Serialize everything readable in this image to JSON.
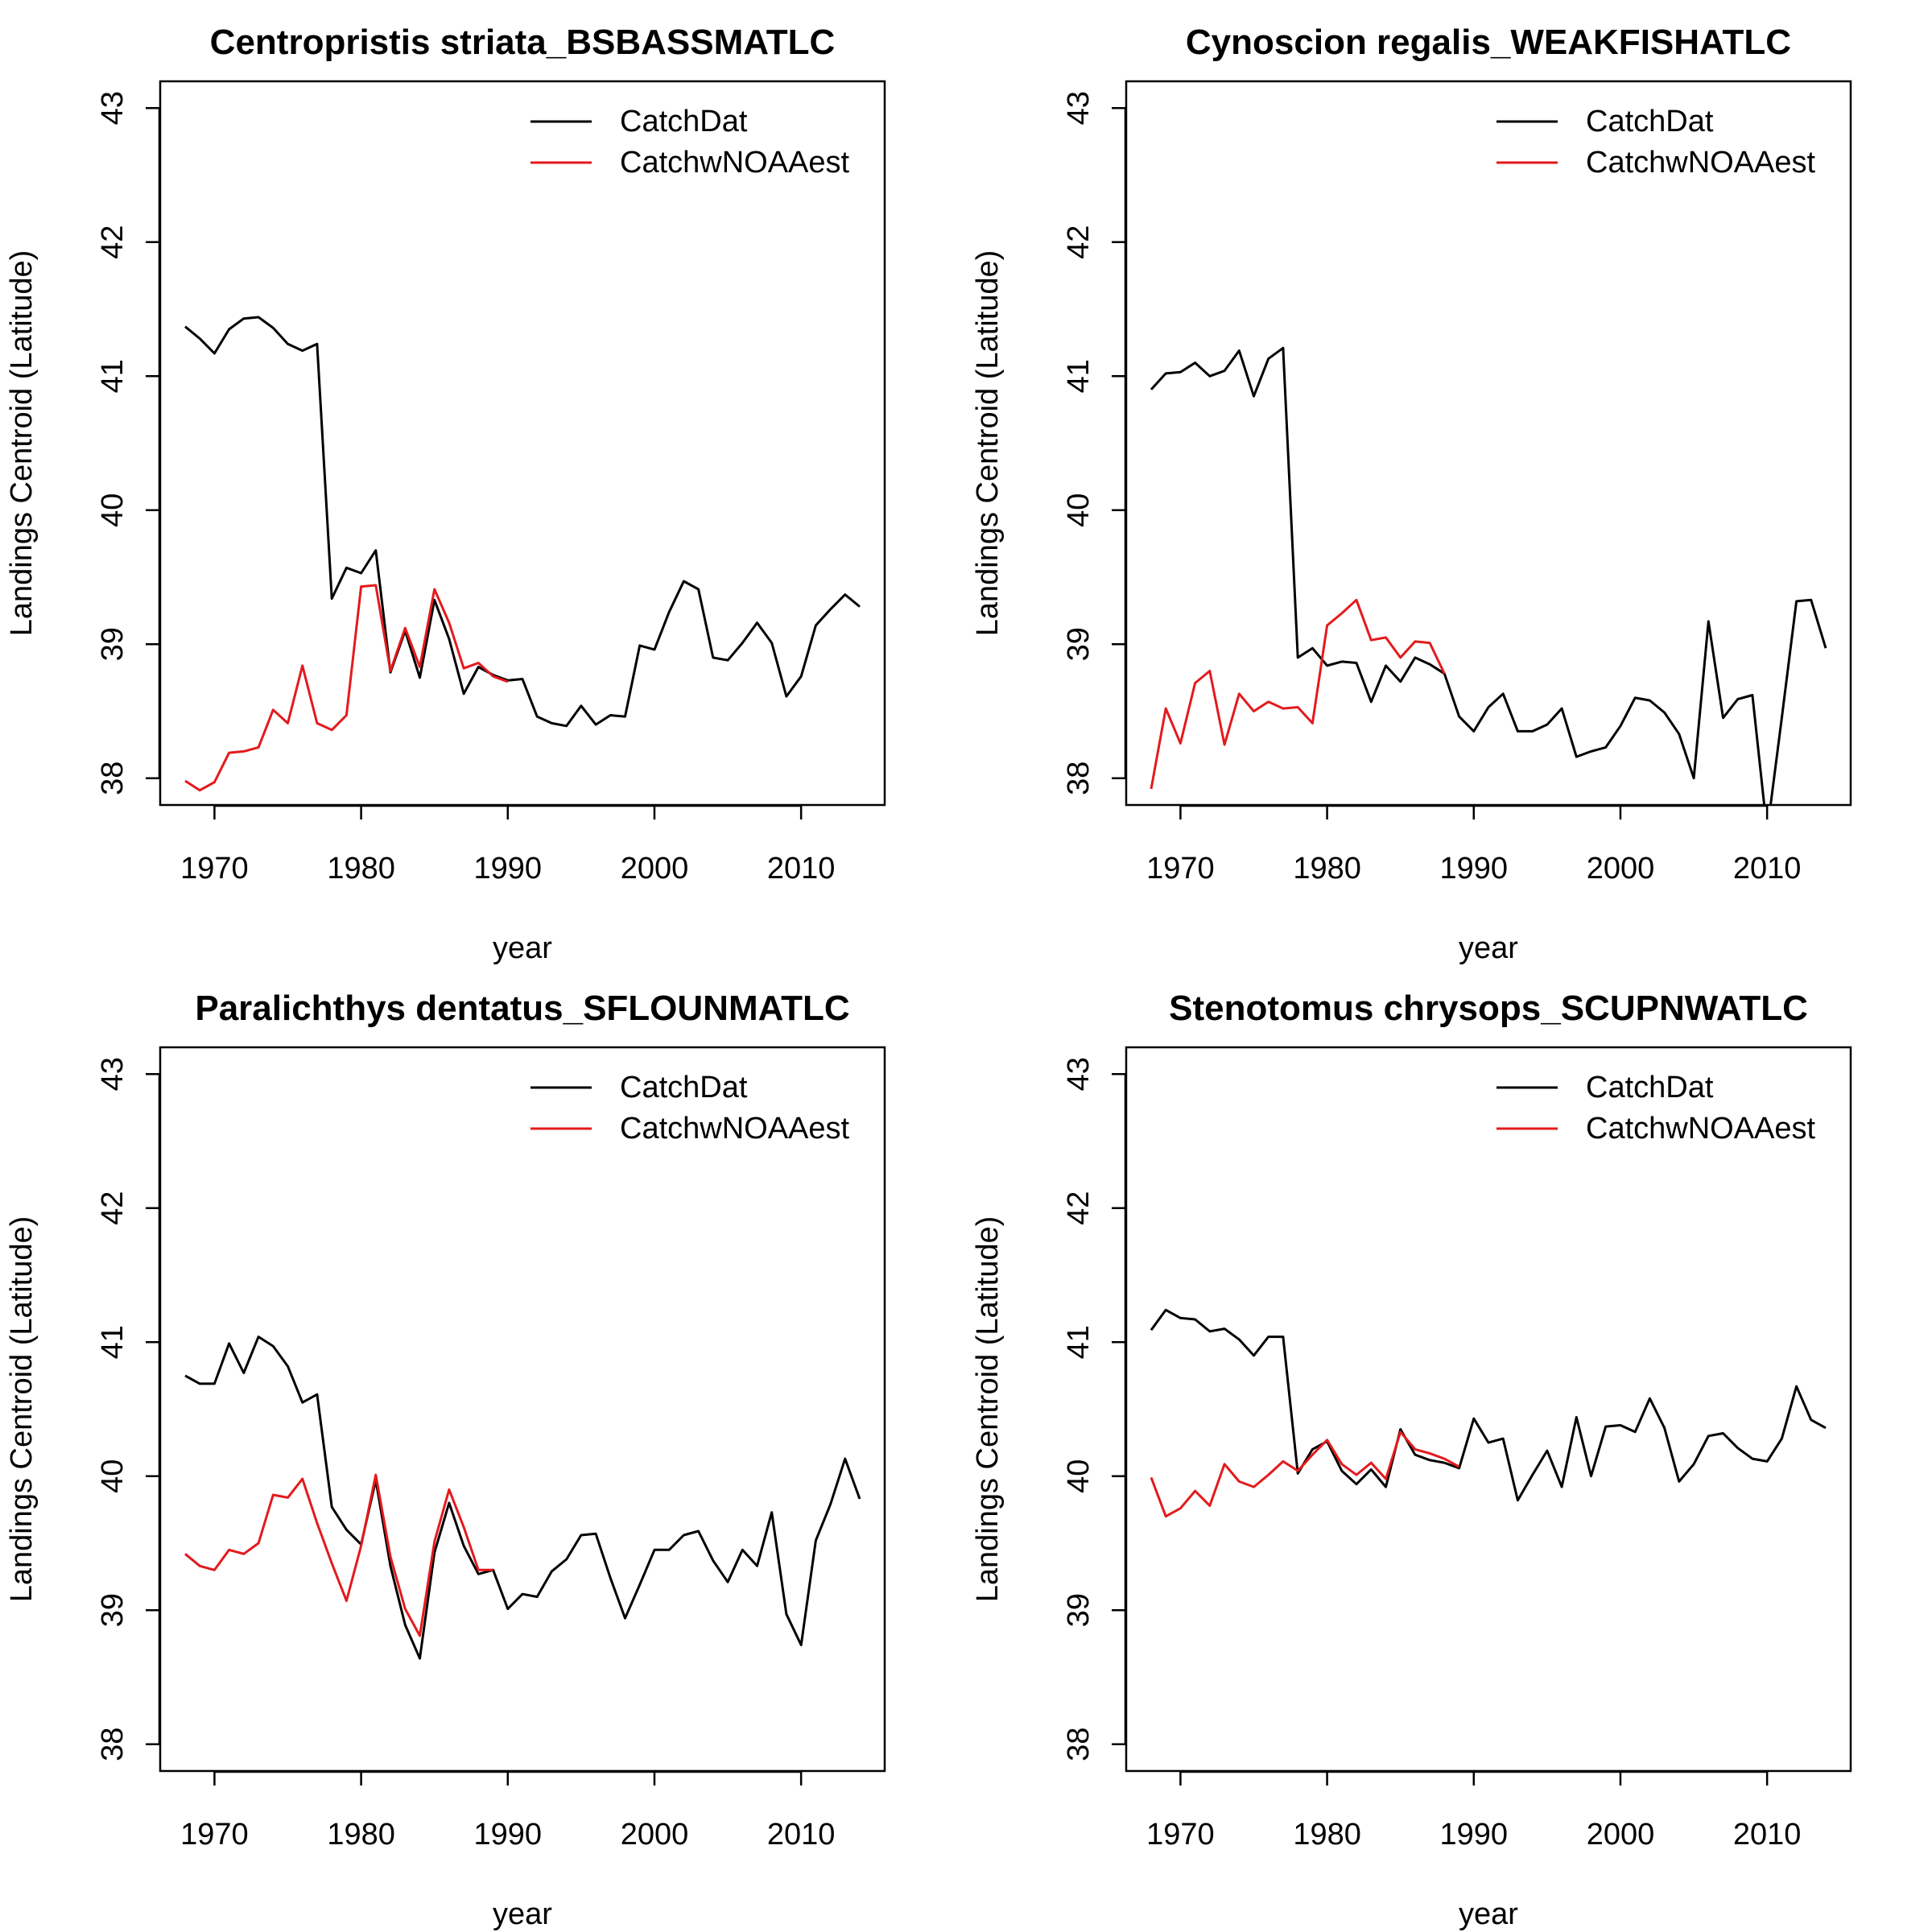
{
  "figure": {
    "legend_labels": [
      "CatchDat",
      "CatchwNOAAest"
    ],
    "colors": {
      "CatchDat": "#000000",
      "CatchwNOAAest": "#e31a1c"
    }
  },
  "chart_data": [
    {
      "type": "line",
      "title": "Centropristis striata_BSBASSMATLC",
      "xlabel": "year",
      "ylabel": "Landings Centroid (Latitude)",
      "xlim": [
        1966.3,
        2015.7
      ],
      "ylim": [
        37.8,
        43.2
      ],
      "xticks": [
        1970,
        1980,
        1990,
        2000,
        2010
      ],
      "yticks": [
        38,
        39,
        40,
        41,
        42,
        43
      ],
      "legend_position": "top-right",
      "series": [
        {
          "name": "CatchDat",
          "color": "#000000",
          "x": [
            1968,
            1969,
            1970,
            1971,
            1972,
            1973,
            1974,
            1975,
            1976,
            1977,
            1978,
            1979,
            1980,
            1981,
            1982,
            1983,
            1984,
            1985,
            1986,
            1987,
            1988,
            1989,
            1990,
            1991,
            1992,
            1993,
            1994,
            1995,
            1996,
            1997,
            1998,
            1999,
            2000,
            2001,
            2002,
            2003,
            2004,
            2005,
            2006,
            2007,
            2008,
            2009,
            2010,
            2011,
            2012,
            2013,
            2014
          ],
          "y": [
            41.37,
            41.28,
            41.17,
            41.35,
            41.43,
            41.44,
            41.36,
            41.24,
            41.19,
            41.24,
            39.34,
            39.57,
            39.53,
            39.7,
            38.79,
            39.1,
            38.75,
            39.33,
            39.04,
            38.63,
            38.83,
            38.77,
            38.73,
            38.74,
            38.46,
            38.41,
            38.39,
            38.54,
            38.4,
            38.47,
            38.46,
            38.99,
            38.96,
            39.24,
            39.47,
            39.41,
            38.9,
            38.88,
            39.01,
            39.16,
            39.01,
            38.61,
            38.76,
            39.14,
            39.26,
            39.37,
            39.28
          ]
        },
        {
          "name": "CatchwNOAAest",
          "color": "#e31a1c",
          "x": [
            1968,
            1969,
            1970,
            1971,
            1972,
            1973,
            1974,
            1975,
            1976,
            1977,
            1978,
            1979,
            1980,
            1981,
            1982,
            1983,
            1984,
            1985,
            1986,
            1987,
            1988,
            1989,
            1990
          ],
          "y": [
            37.98,
            37.91,
            37.97,
            38.19,
            38.2,
            38.23,
            38.51,
            38.41,
            38.84,
            38.41,
            38.36,
            38.47,
            39.43,
            39.44,
            38.8,
            39.12,
            38.83,
            39.41,
            39.16,
            38.82,
            38.86,
            38.76,
            38.72
          ]
        }
      ]
    },
    {
      "type": "line",
      "title": "Cynoscion regalis_WEAKFISHATLC",
      "xlabel": "year",
      "ylabel": "Landings Centroid (Latitude)",
      "xlim": [
        1966.3,
        2015.7
      ],
      "ylim": [
        37.8,
        43.2
      ],
      "xticks": [
        1970,
        1980,
        1990,
        2000,
        2010
      ],
      "yticks": [
        38,
        39,
        40,
        41,
        42,
        43
      ],
      "legend_position": "top-right",
      "series": [
        {
          "name": "CatchDat",
          "color": "#000000",
          "x": [
            1968,
            1969,
            1970,
            1971,
            1972,
            1973,
            1974,
            1975,
            1976,
            1977,
            1978,
            1979,
            1980,
            1981,
            1982,
            1983,
            1984,
            1985,
            1986,
            1987,
            1988,
            1989,
            1990,
            1991,
            1992,
            1993,
            1994,
            1995,
            1996,
            1997,
            1998,
            1999,
            2000,
            2001,
            2002,
            2003,
            2004,
            2005,
            2006,
            2007,
            2008,
            2009,
            2010,
            2011,
            2012,
            2013,
            2014
          ],
          "y": [
            40.9,
            41.02,
            41.03,
            41.1,
            41.0,
            41.04,
            41.19,
            40.85,
            41.13,
            41.21,
            38.9,
            38.97,
            38.84,
            38.87,
            38.86,
            38.57,
            38.84,
            38.72,
            38.9,
            38.85,
            38.78,
            38.46,
            38.35,
            38.53,
            38.63,
            38.35,
            38.35,
            38.4,
            38.52,
            38.16,
            38.2,
            38.23,
            38.39,
            38.6,
            38.58,
            38.49,
            38.33,
            38.0,
            39.17,
            38.45,
            38.59,
            38.62,
            37.6,
            38.45,
            39.32,
            39.33,
            38.97
          ]
        },
        {
          "name": "CatchwNOAAest",
          "color": "#e31a1c",
          "x": [
            1968,
            1969,
            1970,
            1971,
            1972,
            1973,
            1974,
            1975,
            1976,
            1977,
            1978,
            1979,
            1980,
            1981,
            1982,
            1983,
            1984,
            1985,
            1986,
            1987,
            1988
          ],
          "y": [
            37.92,
            38.52,
            38.26,
            38.71,
            38.8,
            38.25,
            38.63,
            38.5,
            38.57,
            38.52,
            38.53,
            38.41,
            39.14,
            39.23,
            39.33,
            39.03,
            39.05,
            38.9,
            39.02,
            39.01,
            38.78
          ]
        }
      ]
    },
    {
      "type": "line",
      "title": "Paralichthys dentatus_SFLOUNMATLC",
      "xlabel": "year",
      "ylabel": "Landings Centroid (Latitude)",
      "xlim": [
        1966.3,
        2015.7
      ],
      "ylim": [
        37.8,
        43.2
      ],
      "xticks": [
        1970,
        1980,
        1990,
        2000,
        2010
      ],
      "yticks": [
        38,
        39,
        40,
        41,
        42,
        43
      ],
      "legend_position": "top-right",
      "series": [
        {
          "name": "CatchDat",
          "color": "#000000",
          "x": [
            1968,
            1969,
            1970,
            1971,
            1972,
            1973,
            1974,
            1975,
            1976,
            1977,
            1978,
            1979,
            1980,
            1981,
            1982,
            1983,
            1984,
            1985,
            1986,
            1987,
            1988,
            1989,
            1990,
            1991,
            1992,
            1993,
            1994,
            1995,
            1996,
            1997,
            1998,
            1999,
            2000,
            2001,
            2002,
            2003,
            2004,
            2005,
            2006,
            2007,
            2008,
            2009,
            2010,
            2011,
            2012,
            2013,
            2014
          ],
          "y": [
            40.75,
            40.69,
            40.69,
            40.99,
            40.77,
            41.04,
            40.97,
            40.82,
            40.55,
            40.61,
            39.77,
            39.6,
            39.49,
            39.97,
            39.33,
            38.89,
            38.64,
            39.43,
            39.8,
            39.48,
            39.27,
            39.3,
            39.01,
            39.12,
            39.1,
            39.29,
            39.38,
            39.56,
            39.57,
            39.24,
            38.94,
            39.19,
            39.45,
            39.45,
            39.56,
            39.59,
            39.37,
            39.21,
            39.45,
            39.33,
            39.73,
            38.97,
            38.74,
            39.52,
            39.79,
            40.13,
            39.83
          ]
        },
        {
          "name": "CatchwNOAAest",
          "color": "#e31a1c",
          "x": [
            1968,
            1969,
            1970,
            1971,
            1972,
            1973,
            1974,
            1975,
            1976,
            1977,
            1978,
            1979,
            1980,
            1981,
            1982,
            1983,
            1984,
            1985,
            1986,
            1987,
            1988,
            1989
          ],
          "y": [
            39.42,
            39.33,
            39.3,
            39.45,
            39.42,
            39.5,
            39.86,
            39.84,
            39.98,
            39.65,
            39.35,
            39.07,
            39.48,
            40.01,
            39.4,
            39.01,
            38.81,
            39.51,
            39.9,
            39.62,
            39.3,
            39.3
          ]
        }
      ]
    },
    {
      "type": "line",
      "title": "Stenotomus chrysops_SCUPNWATLC",
      "xlabel": "year",
      "ylabel": "Landings Centroid (Latitude)",
      "xlim": [
        1966.3,
        2015.7
      ],
      "ylim": [
        37.8,
        43.2
      ],
      "xticks": [
        1970,
        1980,
        1990,
        2000,
        2010
      ],
      "yticks": [
        38,
        39,
        40,
        41,
        42,
        43
      ],
      "legend_position": "top-right",
      "series": [
        {
          "name": "CatchDat",
          "color": "#000000",
          "x": [
            1968,
            1969,
            1970,
            1971,
            1972,
            1973,
            1974,
            1975,
            1976,
            1977,
            1978,
            1979,
            1980,
            1981,
            1982,
            1983,
            1984,
            1985,
            1986,
            1987,
            1988,
            1989,
            1990,
            1991,
            1992,
            1993,
            1994,
            1995,
            1996,
            1997,
            1998,
            1999,
            2000,
            2001,
            2002,
            2003,
            2004,
            2005,
            2006,
            2007,
            2008,
            2009,
            2010,
            2011,
            2012,
            2013,
            2014
          ],
          "y": [
            41.09,
            41.24,
            41.18,
            41.17,
            41.08,
            41.1,
            41.02,
            40.9,
            41.04,
            41.04,
            40.02,
            40.2,
            40.26,
            40.04,
            39.94,
            40.05,
            39.92,
            40.35,
            40.16,
            40.12,
            40.1,
            40.06,
            40.43,
            40.25,
            40.28,
            39.82,
            40.01,
            40.19,
            39.92,
            40.44,
            40.0,
            40.37,
            40.38,
            40.33,
            40.58,
            40.36,
            39.96,
            40.09,
            40.3,
            40.32,
            40.21,
            40.13,
            40.11,
            40.28,
            40.67,
            40.42,
            40.36
          ]
        },
        {
          "name": "CatchwNOAAest",
          "color": "#e31a1c",
          "x": [
            1968,
            1969,
            1970,
            1971,
            1972,
            1973,
            1974,
            1975,
            1976,
            1977,
            1978,
            1979,
            1980,
            1981,
            1982,
            1983,
            1984,
            1985,
            1986,
            1987,
            1988,
            1989
          ],
          "y": [
            39.99,
            39.7,
            39.76,
            39.89,
            39.78,
            40.09,
            39.96,
            39.92,
            40.01,
            40.11,
            40.04,
            40.16,
            40.27,
            40.09,
            40.01,
            40.1,
            39.98,
            40.33,
            40.2,
            40.17,
            40.13,
            40.07
          ]
        }
      ]
    }
  ]
}
